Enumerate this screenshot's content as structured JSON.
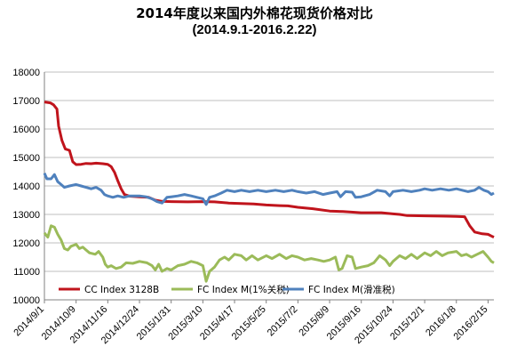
{
  "chart_data": {
    "type": "line",
    "title": "2014年度以来国内外棉花现货价格对比",
    "subtitle": "(2014.9.1-2016.2.22)",
    "xlabel": "",
    "ylabel": "",
    "ylim": [
      10000,
      18000
    ],
    "yticks": [
      "10000",
      "11000",
      "12000",
      "13000",
      "14000",
      "15000",
      "16000",
      "17000",
      "18000"
    ],
    "xticks": [
      "2014/9/1",
      "2014/10/9",
      "2014/11/16",
      "2014/12/24",
      "2015/1/31",
      "2015/3/10",
      "2015/4/17",
      "2015/5/25",
      "2015/7/2",
      "2015/8/9",
      "2015/9/16",
      "2015/10/24",
      "2015/12/1",
      "2016/1/8",
      "2016/2/15"
    ],
    "grid": "horizontal",
    "legend_position": "bottom",
    "series": [
      {
        "name": "CC Index 3128B",
        "color": "#c0141c",
        "points": [
          [
            "2014/9/1",
            16950
          ],
          [
            "2014/9/8",
            16920
          ],
          [
            "2014/9/12",
            16850
          ],
          [
            "2014/9/16",
            16700
          ],
          [
            "2014/9/18",
            16100
          ],
          [
            "2014/9/22",
            15600
          ],
          [
            "2014/9/26",
            15300
          ],
          [
            "2014/10/1",
            15250
          ],
          [
            "2014/10/5",
            14850
          ],
          [
            "2014/10/9",
            14750
          ],
          [
            "2014/10/15",
            14760
          ],
          [
            "2014/10/21",
            14790
          ],
          [
            "2014/10/27",
            14780
          ],
          [
            "2014/11/2",
            14800
          ],
          [
            "2014/11/10",
            14780
          ],
          [
            "2014/11/16",
            14760
          ],
          [
            "2014/11/20",
            14680
          ],
          [
            "2014/11/24",
            14480
          ],
          [
            "2014/11/28",
            14180
          ],
          [
            "2014/12/2",
            13900
          ],
          [
            "2014/12/6",
            13700
          ],
          [
            "2014/12/12",
            13640
          ],
          [
            "2014/12/24",
            13620
          ],
          [
            "2015/1/4",
            13600
          ],
          [
            "2015/1/12",
            13500
          ],
          [
            "2015/1/20",
            13460
          ],
          [
            "2015/1/31",
            13450
          ],
          [
            "2015/2/20",
            13440
          ],
          [
            "2015/3/10",
            13450
          ],
          [
            "2015/3/24",
            13440
          ],
          [
            "2015/4/10",
            13400
          ],
          [
            "2015/4/17",
            13390
          ],
          [
            "2015/5/10",
            13370
          ],
          [
            "2015/5/25",
            13330
          ],
          [
            "2015/6/10",
            13310
          ],
          [
            "2015/6/20",
            13300
          ],
          [
            "2015/7/2",
            13250
          ],
          [
            "2015/7/20",
            13200
          ],
          [
            "2015/8/9",
            13120
          ],
          [
            "2015/8/25",
            13100
          ],
          [
            "2015/9/16",
            13060
          ],
          [
            "2015/10/10",
            13060
          ],
          [
            "2015/10/24",
            13020
          ],
          [
            "2015/11/1",
            13000
          ],
          [
            "2015/11/10",
            12960
          ],
          [
            "2015/12/1",
            12950
          ],
          [
            "2015/12/20",
            12940
          ],
          [
            "2016/1/8",
            12930
          ],
          [
            "2016/1/18",
            12920
          ],
          [
            "2016/1/24",
            12600
          ],
          [
            "2016/1/30",
            12380
          ],
          [
            "2016/2/8",
            12320
          ],
          [
            "2016/2/15",
            12300
          ],
          [
            "2016/2/19",
            12240
          ],
          [
            "2016/2/22",
            12200
          ]
        ]
      },
      {
        "name": "FC Index M(1%关税)",
        "color": "#9bbb59",
        "points": [
          [
            "2014/9/1",
            12350
          ],
          [
            "2014/9/5",
            12200
          ],
          [
            "2014/9/9",
            12600
          ],
          [
            "2014/9/13",
            12550
          ],
          [
            "2014/9/17",
            12300
          ],
          [
            "2014/9/21",
            12100
          ],
          [
            "2014/9/25",
            11800
          ],
          [
            "2014/9/29",
            11750
          ],
          [
            "2014/10/3",
            11880
          ],
          [
            "2014/10/9",
            11950
          ],
          [
            "2014/10/13",
            11800
          ],
          [
            "2014/10/17",
            11850
          ],
          [
            "2014/10/21",
            11750
          ],
          [
            "2014/10/25",
            11650
          ],
          [
            "2014/11/1",
            11600
          ],
          [
            "2014/11/5",
            11700
          ],
          [
            "2014/11/10",
            11500
          ],
          [
            "2014/11/13",
            11250
          ],
          [
            "2014/11/16",
            11150
          ],
          [
            "2014/11/20",
            11200
          ],
          [
            "2014/11/26",
            11100
          ],
          [
            "2014/12/2",
            11150
          ],
          [
            "2014/12/8",
            11300
          ],
          [
            "2014/12/16",
            11280
          ],
          [
            "2014/12/24",
            11350
          ],
          [
            "2015/1/2",
            11300
          ],
          [
            "2015/1/8",
            11200
          ],
          [
            "2015/1/12",
            11050
          ],
          [
            "2015/1/16",
            11250
          ],
          [
            "2015/1/20",
            11000
          ],
          [
            "2015/1/26",
            11100
          ],
          [
            "2015/1/31",
            11050
          ],
          [
            "2015/2/8",
            11200
          ],
          [
            "2015/2/16",
            11250
          ],
          [
            "2015/2/24",
            11350
          ],
          [
            "2015/3/3",
            11300
          ],
          [
            "2015/3/10",
            11200
          ],
          [
            "2015/3/14",
            10650
          ],
          [
            "2015/3/18",
            11000
          ],
          [
            "2015/3/24",
            11150
          ],
          [
            "2015/3/30",
            11400
          ],
          [
            "2015/4/5",
            11500
          ],
          [
            "2015/4/10",
            11400
          ],
          [
            "2015/4/17",
            11600
          ],
          [
            "2015/4/25",
            11550
          ],
          [
            "2015/5/1",
            11400
          ],
          [
            "2015/5/8",
            11550
          ],
          [
            "2015/5/15",
            11400
          ],
          [
            "2015/5/25",
            11550
          ],
          [
            "2015/6/1",
            11450
          ],
          [
            "2015/6/10",
            11600
          ],
          [
            "2015/6/18",
            11450
          ],
          [
            "2015/6/25",
            11550
          ],
          [
            "2015/7/2",
            11500
          ],
          [
            "2015/7/10",
            11400
          ],
          [
            "2015/7/18",
            11450
          ],
          [
            "2015/7/26",
            11400
          ],
          [
            "2015/8/2",
            11350
          ],
          [
            "2015/8/9",
            11400
          ],
          [
            "2015/8/16",
            11500
          ],
          [
            "2015/8/20",
            11050
          ],
          [
            "2015/8/24",
            11100
          ],
          [
            "2015/8/30",
            11550
          ],
          [
            "2015/9/5",
            11500
          ],
          [
            "2015/9/9",
            11100
          ],
          [
            "2015/9/16",
            11150
          ],
          [
            "2015/9/24",
            11200
          ],
          [
            "2015/10/1",
            11300
          ],
          [
            "2015/10/8",
            11550
          ],
          [
            "2015/10/15",
            11400
          ],
          [
            "2015/10/20",
            11200
          ],
          [
            "2015/10/24",
            11350
          ],
          [
            "2015/11/1",
            11550
          ],
          [
            "2015/11/8",
            11450
          ],
          [
            "2015/11/15",
            11600
          ],
          [
            "2015/11/22",
            11450
          ],
          [
            "2015/12/1",
            11650
          ],
          [
            "2015/12/8",
            11550
          ],
          [
            "2015/12/15",
            11700
          ],
          [
            "2015/12/22",
            11550
          ],
          [
            "2015/12/29",
            11650
          ],
          [
            "2016/1/8",
            11700
          ],
          [
            "2016/1/14",
            11550
          ],
          [
            "2016/1/20",
            11600
          ],
          [
            "2016/1/26",
            11500
          ],
          [
            "2016/2/2",
            11600
          ],
          [
            "2016/2/9",
            11700
          ],
          [
            "2016/2/15",
            11500
          ],
          [
            "2016/2/19",
            11350
          ],
          [
            "2016/2/22",
            11300
          ]
        ]
      },
      {
        "name": "FC Index M(滑准税)",
        "color": "#4f81bd",
        "points": [
          [
            "2014/9/1",
            14450
          ],
          [
            "2014/9/4",
            14250
          ],
          [
            "2014/9/9",
            14250
          ],
          [
            "2014/9/13",
            14400
          ],
          [
            "2014/9/17",
            14150
          ],
          [
            "2014/9/21",
            14050
          ],
          [
            "2014/9/25",
            13950
          ],
          [
            "2014/10/1",
            14000
          ],
          [
            "2014/10/9",
            14050
          ],
          [
            "2014/10/15",
            14000
          ],
          [
            "2014/10/21",
            13950
          ],
          [
            "2014/10/27",
            13900
          ],
          [
            "2014/11/2",
            13950
          ],
          [
            "2014/11/8",
            13850
          ],
          [
            "2014/11/12",
            13700
          ],
          [
            "2014/11/16",
            13650
          ],
          [
            "2014/11/22",
            13600
          ],
          [
            "2014/11/28",
            13650
          ],
          [
            "2014/12/5",
            13600
          ],
          [
            "2014/12/12",
            13650
          ],
          [
            "2014/12/24",
            13650
          ],
          [
            "2015/1/1",
            13620
          ],
          [
            "2015/1/8",
            13550
          ],
          [
            "2015/1/14",
            13450
          ],
          [
            "2015/1/20",
            13400
          ],
          [
            "2015/1/26",
            13600
          ],
          [
            "2015/1/31",
            13620
          ],
          [
            "2015/2/8",
            13650
          ],
          [
            "2015/2/16",
            13700
          ],
          [
            "2015/2/24",
            13650
          ],
          [
            "2015/3/3",
            13600
          ],
          [
            "2015/3/10",
            13550
          ],
          [
            "2015/3/14",
            13350
          ],
          [
            "2015/3/18",
            13600
          ],
          [
            "2015/3/24",
            13650
          ],
          [
            "2015/4/1",
            13750
          ],
          [
            "2015/4/8",
            13850
          ],
          [
            "2015/4/17",
            13800
          ],
          [
            "2015/4/25",
            13850
          ],
          [
            "2015/5/5",
            13800
          ],
          [
            "2015/5/15",
            13850
          ],
          [
            "2015/5/25",
            13800
          ],
          [
            "2015/6/5",
            13850
          ],
          [
            "2015/6/15",
            13800
          ],
          [
            "2015/6/25",
            13850
          ],
          [
            "2015/7/2",
            13800
          ],
          [
            "2015/7/12",
            13750
          ],
          [
            "2015/7/22",
            13800
          ],
          [
            "2015/8/1",
            13700
          ],
          [
            "2015/8/9",
            13750
          ],
          [
            "2015/8/18",
            13800
          ],
          [
            "2015/8/22",
            13620
          ],
          [
            "2015/8/28",
            13800
          ],
          [
            "2015/9/5",
            13780
          ],
          [
            "2015/9/9",
            13600
          ],
          [
            "2015/9/16",
            13620
          ],
          [
            "2015/9/26",
            13700
          ],
          [
            "2015/10/5",
            13850
          ],
          [
            "2015/10/15",
            13800
          ],
          [
            "2015/10/20",
            13650
          ],
          [
            "2015/10/24",
            13800
          ],
          [
            "2015/11/5",
            13850
          ],
          [
            "2015/11/15",
            13800
          ],
          [
            "2015/11/25",
            13850
          ],
          [
            "2015/12/1",
            13900
          ],
          [
            "2015/12/10",
            13850
          ],
          [
            "2015/12/20",
            13900
          ],
          [
            "2015/12/30",
            13850
          ],
          [
            "2016/1/8",
            13900
          ],
          [
            "2016/1/15",
            13850
          ],
          [
            "2016/1/22",
            13800
          ],
          [
            "2016/1/30",
            13850
          ],
          [
            "2016/2/4",
            13950
          ],
          [
            "2016/2/10",
            13850
          ],
          [
            "2016/2/15",
            13800
          ],
          [
            "2016/2/19",
            13700
          ],
          [
            "2016/2/22",
            13750
          ]
        ]
      }
    ]
  }
}
